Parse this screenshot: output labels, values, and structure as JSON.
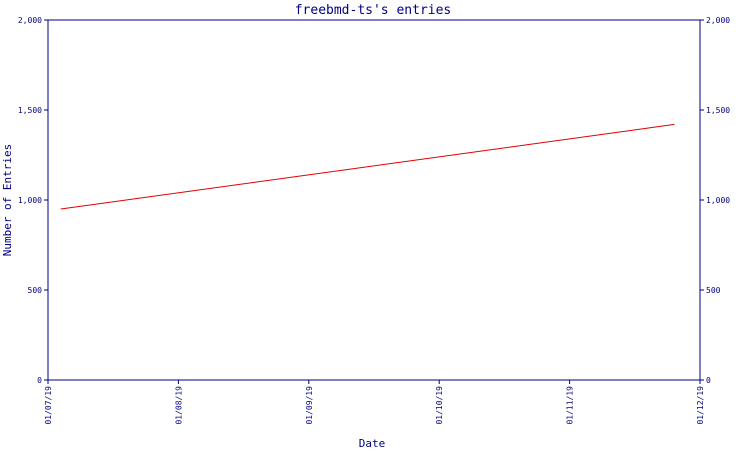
{
  "chart_data": {
    "type": "line",
    "title": "freebmd-ts's entries",
    "xlabel": "Date",
    "ylabel": "Number of Entries",
    "x_ticks": [
      "01/07/19",
      "01/08/19",
      "01/09/19",
      "01/10/19",
      "01/11/19",
      "01/12/19"
    ],
    "y_ticks": [
      "0",
      "500",
      "1,000",
      "1,500",
      "2,000"
    ],
    "ylim": [
      0,
      2000
    ],
    "xlim": [
      "2019-07-01",
      "2019-12-01"
    ],
    "grid": false,
    "right_axis_mirrored": true,
    "series": [
      {
        "color": "#e00000",
        "points": [
          {
            "x": "2019-07-04",
            "y": 950
          },
          {
            "x": "2019-11-25",
            "y": 1420
          }
        ]
      }
    ]
  },
  "colors": {
    "axis": "#000080",
    "text": "#000080",
    "line": "#e00000",
    "background": "#ffffff"
  }
}
